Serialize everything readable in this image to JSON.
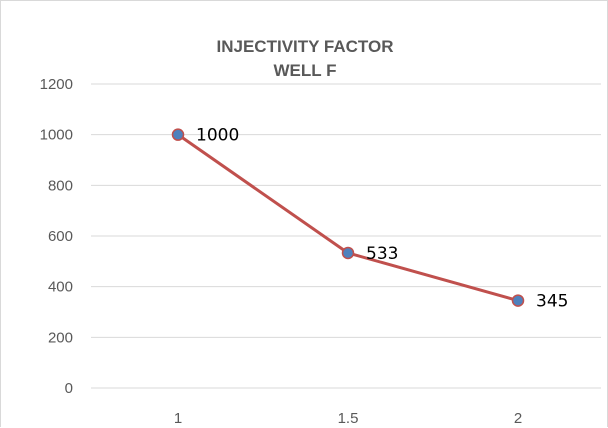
{
  "chart_data": {
    "type": "line",
    "title": [
      "INJECTIVITY FACTOR",
      "WELL F"
    ],
    "xlabel": "",
    "ylabel": "",
    "categories": [
      "1",
      "1.5",
      "2"
    ],
    "series": [
      {
        "values": [
          1000,
          533,
          345
        ],
        "labels": [
          "1000",
          "533",
          "345"
        ],
        "line_color": "#c0504d",
        "marker_color": "#4f81bd"
      }
    ],
    "ylim": [
      0,
      1200
    ],
    "yticks": [
      "0",
      "200",
      "400",
      "600",
      "800",
      "1000",
      "1200"
    ],
    "gridlines": true,
    "grid_color": "#d9d9d9",
    "legend": "none"
  }
}
